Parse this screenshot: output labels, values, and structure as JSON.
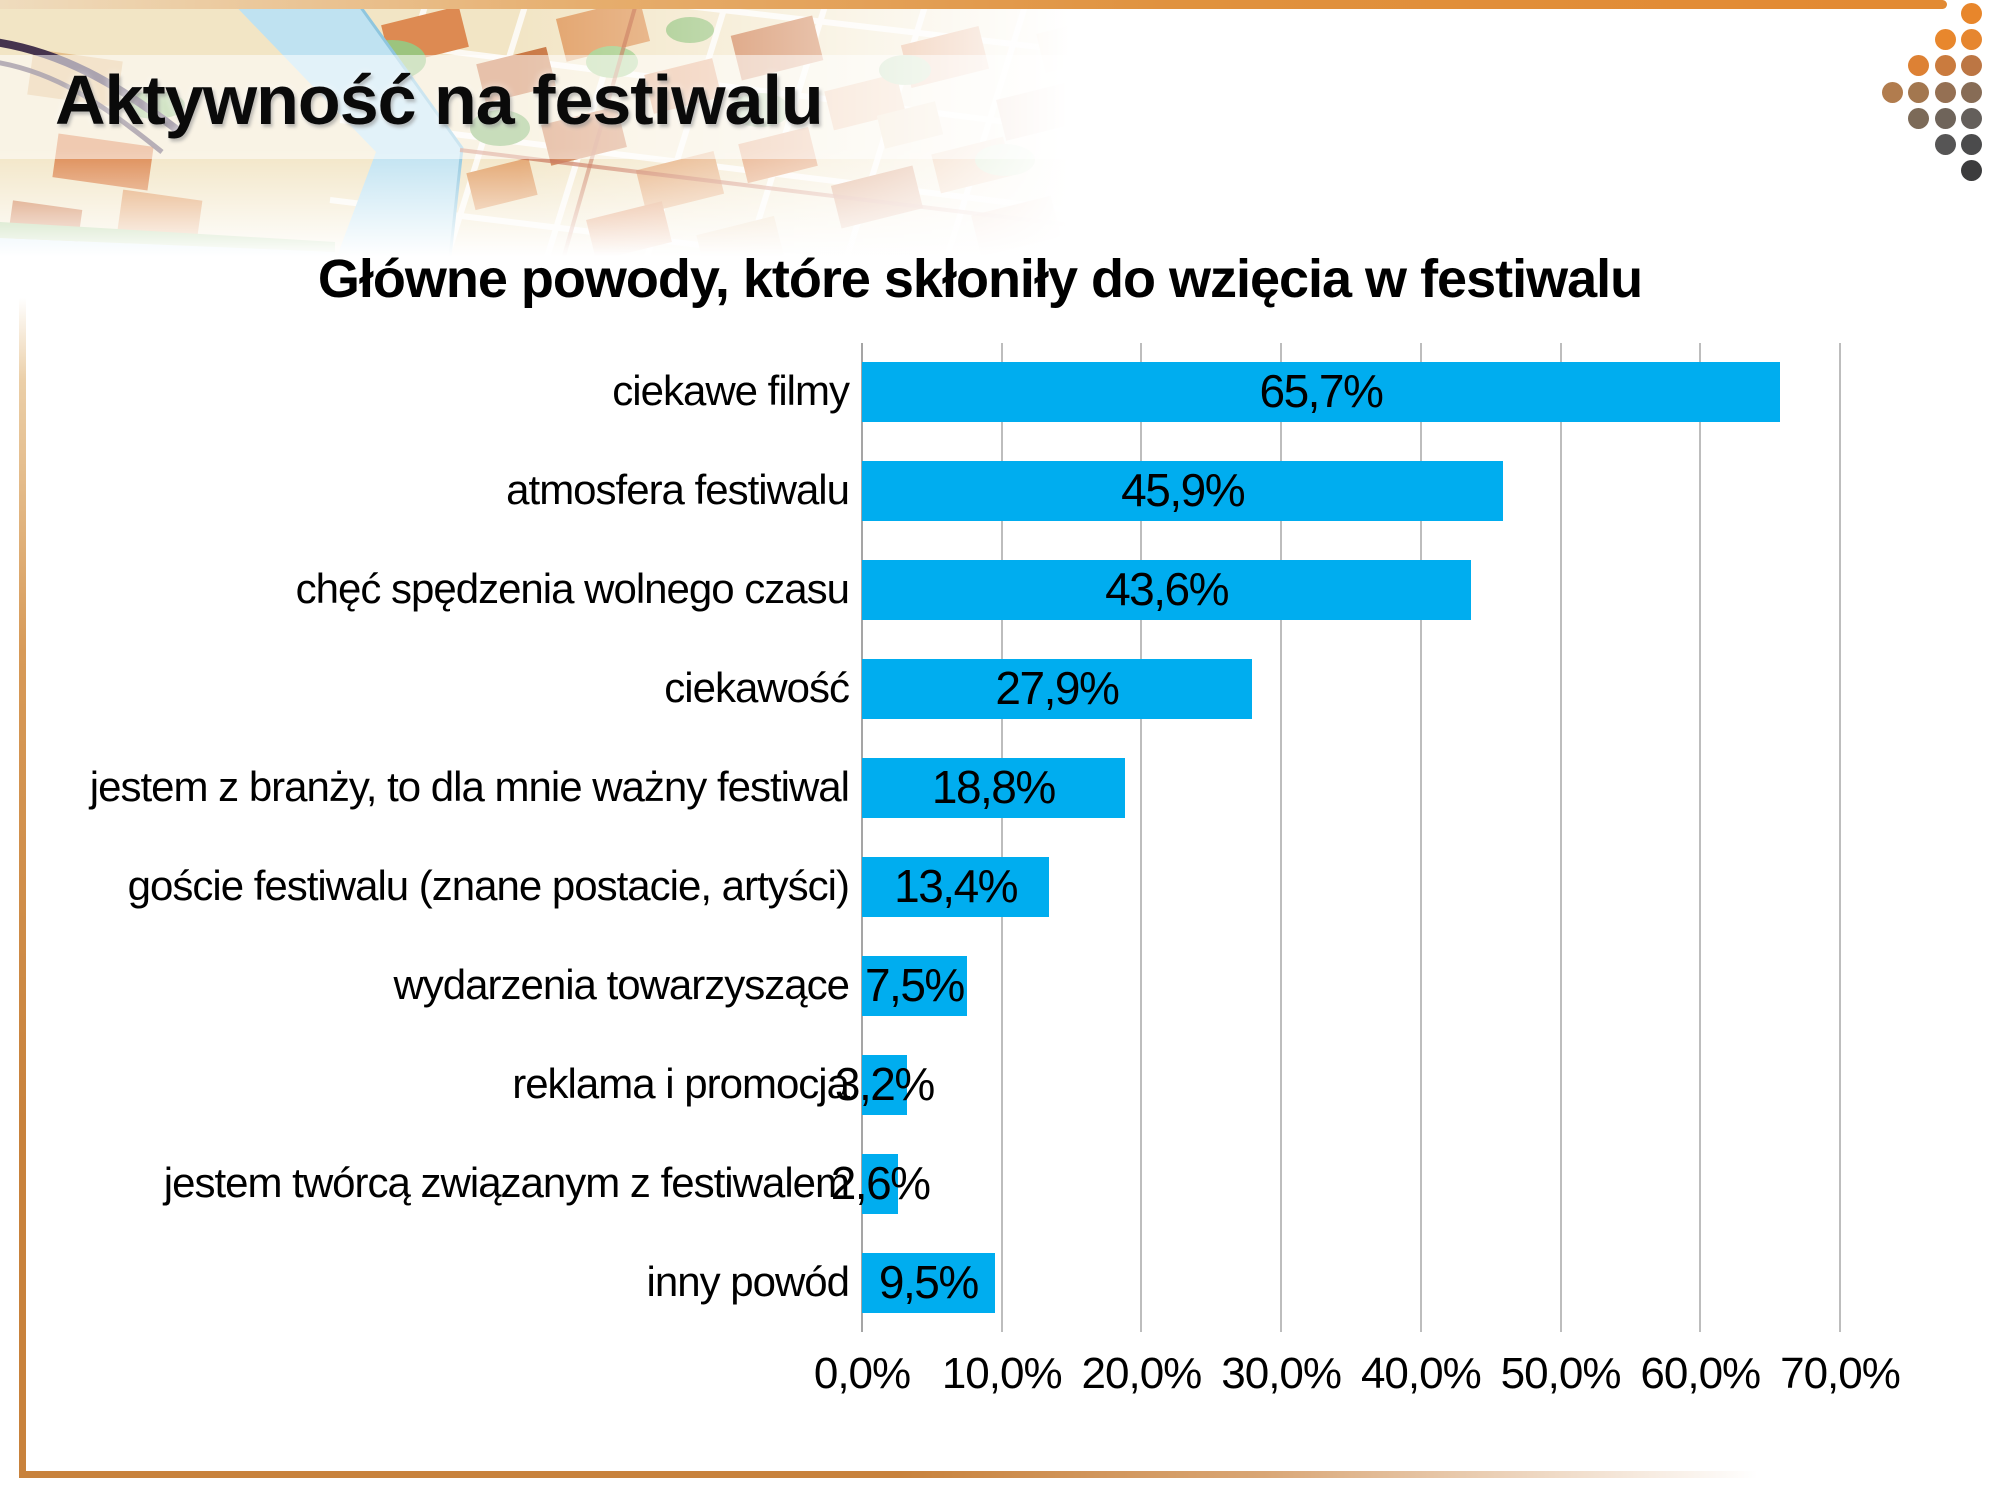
{
  "header": {
    "title": "Aktywność na festiwalu"
  },
  "colors": {
    "accent_orange": "#C8823C",
    "accent_orange_light": "#EFDCBE",
    "bar_blue": "#00ADEF",
    "gridline": "#BDBDBD",
    "axis_line": "#A5A5A5",
    "text": "#000000",
    "title_band": "rgba(255,255,255,0.55)"
  },
  "logo_dots": [
    {
      "row": 0,
      "col": 3,
      "color": "#E8862B"
    },
    {
      "row": 1,
      "col": 2,
      "color": "#E8872D"
    },
    {
      "row": 1,
      "col": 3,
      "color": "#E6862F"
    },
    {
      "row": 2,
      "col": 1,
      "color": "#DD8134"
    },
    {
      "row": 2,
      "col": 2,
      "color": "#CA7B3E"
    },
    {
      "row": 2,
      "col": 3,
      "color": "#BC7644"
    },
    {
      "row": 3,
      "col": 0,
      "color": "#B17C4E"
    },
    {
      "row": 3,
      "col": 1,
      "color": "#A3774F"
    },
    {
      "row": 3,
      "col": 2,
      "color": "#957053"
    },
    {
      "row": 3,
      "col": 3,
      "color": "#876C56"
    },
    {
      "row": 4,
      "col": 1,
      "color": "#7C6A58"
    },
    {
      "row": 4,
      "col": 2,
      "color": "#6F645A"
    },
    {
      "row": 4,
      "col": 3,
      "color": "#645F5B"
    },
    {
      "row": 5,
      "col": 2,
      "color": "#565555"
    },
    {
      "row": 5,
      "col": 3,
      "color": "#4B4B4C"
    },
    {
      "row": 6,
      "col": 3,
      "color": "#3C3C3D"
    }
  ],
  "chart_data": {
    "type": "bar",
    "orientation": "horizontal",
    "title": "Główne powody, które skłoniły do wzięcia w festiwalu",
    "categories": [
      "ciekawe filmy",
      "atmosfera festiwalu",
      "chęć spędzenia wolnego czasu",
      "ciekawość",
      "jestem z branży, to dla mnie ważny festiwal",
      "goście festiwalu (znane postacie, artyści)",
      "wydarzenia towarzyszące",
      "reklama i promocja",
      "jestem twórcą związanym z festiwalem",
      "inny powód"
    ],
    "values": [
      65.7,
      45.9,
      43.6,
      27.9,
      18.8,
      13.4,
      7.5,
      3.2,
      2.6,
      9.5
    ],
    "value_labels": [
      "65,7%",
      "45,9%",
      "43,6%",
      "27,9%",
      "18,8%",
      "13,4%",
      "7,5%",
      "3,2%",
      "2,6%",
      "9,5%"
    ],
    "x_tick_labels": [
      "0,0%",
      "10,0%",
      "20,0%",
      "30,0%",
      "40,0%",
      "50,0%",
      "60,0%",
      "70,0%"
    ],
    "xlim": [
      0,
      70
    ],
    "x_tick_step": 10,
    "grid": true,
    "legend": false,
    "bar_color": "#00ADEF",
    "value_label_position": "center-of-bar"
  }
}
